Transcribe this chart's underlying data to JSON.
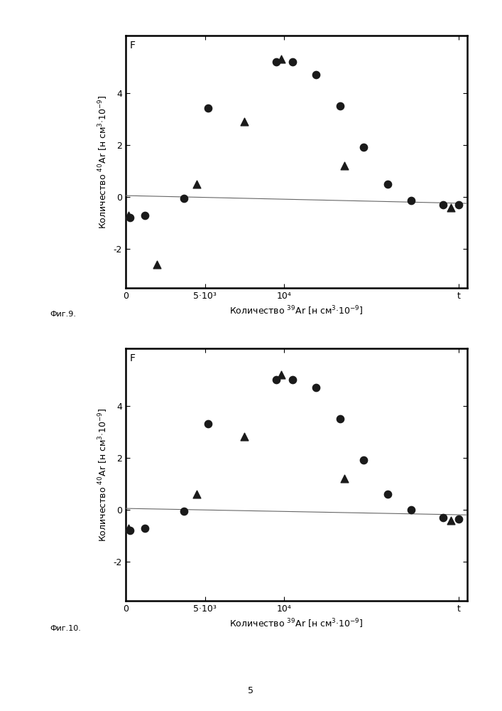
{
  "fig9": {
    "circles": [
      [
        300,
        -0.8
      ],
      [
        1200,
        -0.7
      ],
      [
        3700,
        -0.05
      ],
      [
        5200,
        3.4
      ],
      [
        9500,
        5.2
      ],
      [
        10500,
        5.2
      ],
      [
        12000,
        4.7
      ],
      [
        13500,
        3.5
      ],
      [
        15000,
        1.9
      ],
      [
        16500,
        0.5
      ],
      [
        18000,
        -0.15
      ],
      [
        20000,
        -0.3
      ],
      [
        21000,
        -0.3
      ]
    ],
    "triangles": [
      [
        200,
        -0.7
      ],
      [
        2000,
        -2.6
      ],
      [
        4500,
        0.5
      ],
      [
        7500,
        2.9
      ],
      [
        9800,
        5.3
      ],
      [
        13800,
        1.2
      ],
      [
        20500,
        -0.4
      ]
    ],
    "line_x": [
      0,
      21500
    ],
    "line_y": [
      0.05,
      -0.25
    ],
    "xlim": [
      0,
      21500
    ],
    "ylim": [
      -3.5,
      6.2
    ],
    "yticks": [
      -2,
      0,
      2,
      4
    ],
    "xtick_labels": [
      "0",
      "5·10³",
      "10⁴",
      "t"
    ],
    "xtick_pos": [
      0,
      5000,
      10000,
      21000
    ],
    "xlabel": "Количество $^{39}$Ar [н см$^{3}$·10$^{-9}$]",
    "ylabel": "Количество $^{40}$Ar [н см$^{3}$·10$^{-9}$]",
    "F_label": "F",
    "fig_label": "Фиг.9."
  },
  "fig10": {
    "circles": [
      [
        300,
        -0.8
      ],
      [
        1200,
        -0.7
      ],
      [
        3700,
        -0.05
      ],
      [
        5200,
        3.3
      ],
      [
        9500,
        5.0
      ],
      [
        10500,
        5.0
      ],
      [
        12000,
        4.7
      ],
      [
        13500,
        3.5
      ],
      [
        15000,
        1.9
      ],
      [
        16500,
        0.6
      ],
      [
        18000,
        0.0
      ],
      [
        20000,
        -0.3
      ],
      [
        21000,
        -0.35
      ]
    ],
    "triangles": [
      [
        200,
        -0.7
      ],
      [
        4500,
        0.6
      ],
      [
        7500,
        2.8
      ],
      [
        9800,
        5.2
      ],
      [
        13800,
        1.2
      ],
      [
        20500,
        -0.4
      ]
    ],
    "line_x": [
      0,
      21500
    ],
    "line_y": [
      0.05,
      -0.2
    ],
    "xlim": [
      0,
      21500
    ],
    "ylim": [
      -3.5,
      6.2
    ],
    "yticks": [
      -2,
      0,
      2,
      4
    ],
    "xtick_labels": [
      "0",
      "5·10³",
      "10⁴",
      "t"
    ],
    "xtick_pos": [
      0,
      5000,
      10000,
      21000
    ],
    "xlabel": "Количество $^{39}$Ar [н см$^{3}$·10$^{-9}$]",
    "ylabel": "Количество $^{40}$Ar [н см$^{3}$·10$^{-9}$]",
    "F_label": "F",
    "fig_label": "Фиг.10."
  },
  "page_number": "5",
  "background_color": "#ffffff",
  "marker_color": "#1a1a1a",
  "line_color": "#666666",
  "marker_size_circle": 55,
  "marker_size_triangle": 60,
  "font_size_label": 9,
  "font_size_tick": 9,
  "font_size_fig_label": 8,
  "font_size_F": 10,
  "font_size_page": 9
}
